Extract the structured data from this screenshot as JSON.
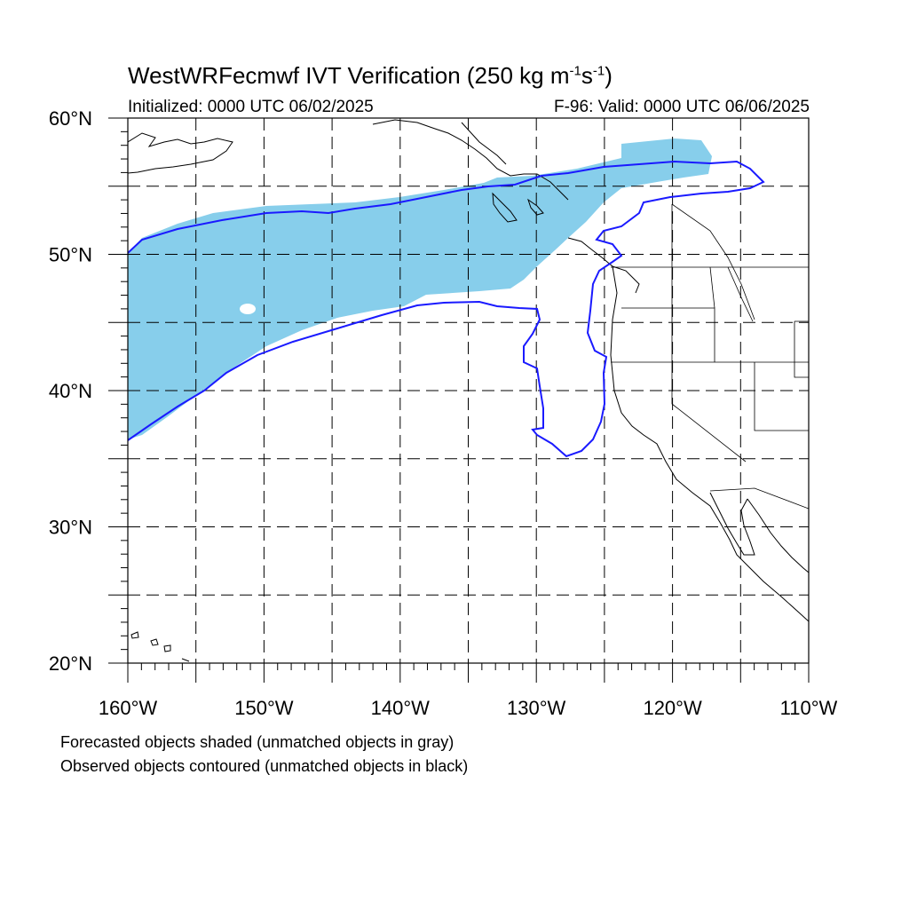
{
  "title": {
    "prefix": "WestWRFecmwf IVT Verification (250 kg m",
    "sup1": "-1",
    "mid": "s",
    "sup2": "-1",
    "suffix": ")"
  },
  "subtitle_left": "Initialized: 0000 UTC 06/02/2025",
  "subtitle_right": "F-96: Valid: 0000 UTC 06/06/2025",
  "legend": {
    "line1": "Forecasted objects shaded (unmatched objects in gray)",
    "line2": "Observed objects contoured (unmatched objects in black)"
  },
  "map": {
    "lon_range": [
      -160,
      -110
    ],
    "lat_range": [
      20,
      60
    ],
    "lat_ticks": [
      "20°N",
      "30°N",
      "40°N",
      "50°N",
      "60°N"
    ],
    "lon_ticks": [
      "160°W",
      "150°W",
      "140°W",
      "130°W",
      "120°W",
      "110°W"
    ],
    "forecast_fill_color": "#87CEEB",
    "observed_contour_color": "#1a1aff",
    "coastline_color": "#000000",
    "grid_style": "dashed"
  }
}
